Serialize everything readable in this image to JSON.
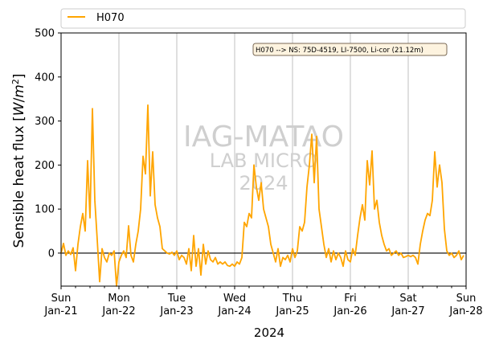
{
  "chart_data": {
    "type": "line",
    "xlabel": "2024",
    "ylabel": "Sensible heat flux [W/m²]",
    "ylabel_parts": {
      "main": "Sensible heat flux [",
      "var": "W",
      "slash": "/",
      "base": "m",
      "exp": "2",
      "close": "]"
    },
    "ylim": [
      -75,
      500
    ],
    "yticks": [
      0,
      100,
      200,
      300,
      400,
      500
    ],
    "xlim": [
      "2024-01-21",
      "2024-01-28"
    ],
    "xticks": [
      {
        "date": "2024-01-21",
        "day": "Sun",
        "label": "Jan-21"
      },
      {
        "date": "2024-01-22",
        "day": "Mon",
        "label": "Jan-22"
      },
      {
        "date": "2024-01-23",
        "day": "Tue",
        "label": "Jan-23"
      },
      {
        "date": "2024-01-24",
        "day": "Wed",
        "label": "Jan-24"
      },
      {
        "date": "2024-01-25",
        "day": "Thu",
        "label": "Jan-25"
      },
      {
        "date": "2024-01-26",
        "day": "Fri",
        "label": "Jan-26"
      },
      {
        "date": "2024-01-27",
        "day": "Sat",
        "label": "Jan-27"
      },
      {
        "date": "2024-01-28",
        "day": "Sun",
        "label": "Jan-28"
      }
    ],
    "grid": "vertical",
    "zero_line": true,
    "legend_position": "top",
    "annotation": "H070 --> NS: 75D-4519, LI-7500, Li-cor (21.12m)",
    "watermark": {
      "line1": "IAG-MATAO",
      "line2": "LAB MICRO",
      "line3": "2024"
    },
    "series": [
      {
        "name": "H070",
        "color": "#ffa500",
        "points": [
          [
            "2024-01-21 00:00",
            0
          ],
          [
            "2024-01-21 01:00",
            22
          ],
          [
            "2024-01-21 02:00",
            -5
          ],
          [
            "2024-01-21 03:00",
            5
          ],
          [
            "2024-01-21 04:00",
            -3
          ],
          [
            "2024-01-21 05:00",
            12
          ],
          [
            "2024-01-21 06:00",
            -40
          ],
          [
            "2024-01-21 07:00",
            20
          ],
          [
            "2024-01-21 08:00",
            60
          ],
          [
            "2024-01-21 09:00",
            90
          ],
          [
            "2024-01-21 10:00",
            50
          ],
          [
            "2024-01-21 11:00",
            210
          ],
          [
            "2024-01-21 12:00",
            80
          ],
          [
            "2024-01-21 13:00",
            328
          ],
          [
            "2024-01-21 14:00",
            120
          ],
          [
            "2024-01-21 15:00",
            30
          ],
          [
            "2024-01-21 16:00",
            -65
          ],
          [
            "2024-01-21 17:00",
            10
          ],
          [
            "2024-01-21 18:00",
            -10
          ],
          [
            "2024-01-21 19:00",
            -20
          ],
          [
            "2024-01-21 20:00",
            0
          ],
          [
            "2024-01-21 21:00",
            -5
          ],
          [
            "2024-01-21 22:00",
            5
          ],
          [
            "2024-01-21 23:00",
            -75
          ],
          [
            "2024-01-22 00:00",
            -20
          ],
          [
            "2024-01-22 01:00",
            -5
          ],
          [
            "2024-01-22 02:00",
            5
          ],
          [
            "2024-01-22 03:00",
            -10
          ],
          [
            "2024-01-22 04:00",
            62
          ],
          [
            "2024-01-22 05:00",
            -5
          ],
          [
            "2024-01-22 06:00",
            -20
          ],
          [
            "2024-01-22 07:00",
            20
          ],
          [
            "2024-01-22 08:00",
            50
          ],
          [
            "2024-01-22 09:00",
            100
          ],
          [
            "2024-01-22 10:00",
            220
          ],
          [
            "2024-01-22 11:00",
            180
          ],
          [
            "2024-01-22 12:00",
            336
          ],
          [
            "2024-01-22 13:00",
            130
          ],
          [
            "2024-01-22 14:00",
            230
          ],
          [
            "2024-01-22 15:00",
            110
          ],
          [
            "2024-01-22 16:00",
            80
          ],
          [
            "2024-01-22 17:00",
            60
          ],
          [
            "2024-01-22 18:00",
            10
          ],
          [
            "2024-01-22 19:00",
            5
          ],
          [
            "2024-01-22 20:00",
            0
          ],
          [
            "2024-01-22 21:00",
            -2
          ],
          [
            "2024-01-22 22:00",
            2
          ],
          [
            "2024-01-22 23:00",
            -5
          ],
          [
            "2024-01-23 00:00",
            5
          ],
          [
            "2024-01-23 01:00",
            -15
          ],
          [
            "2024-01-23 02:00",
            -5
          ],
          [
            "2024-01-23 03:00",
            -10
          ],
          [
            "2024-01-23 04:00",
            -25
          ],
          [
            "2024-01-23 05:00",
            10
          ],
          [
            "2024-01-23 06:00",
            -40
          ],
          [
            "2024-01-23 07:00",
            40
          ],
          [
            "2024-01-23 08:00",
            -30
          ],
          [
            "2024-01-23 09:00",
            10
          ],
          [
            "2024-01-23 10:00",
            -50
          ],
          [
            "2024-01-23 11:00",
            20
          ],
          [
            "2024-01-23 12:00",
            -25
          ],
          [
            "2024-01-23 13:00",
            5
          ],
          [
            "2024-01-23 14:00",
            -15
          ],
          [
            "2024-01-23 15:00",
            -20
          ],
          [
            "2024-01-23 16:00",
            -10
          ],
          [
            "2024-01-23 17:00",
            -25
          ],
          [
            "2024-01-23 18:00",
            -20
          ],
          [
            "2024-01-23 19:00",
            -25
          ],
          [
            "2024-01-23 20:00",
            -20
          ],
          [
            "2024-01-23 21:00",
            -28
          ],
          [
            "2024-01-23 22:00",
            -30
          ],
          [
            "2024-01-23 23:00",
            -25
          ],
          [
            "2024-01-24 00:00",
            -30
          ],
          [
            "2024-01-24 01:00",
            -20
          ],
          [
            "2024-01-24 02:00",
            -25
          ],
          [
            "2024-01-24 03:00",
            -10
          ],
          [
            "2024-01-24 04:00",
            70
          ],
          [
            "2024-01-24 05:00",
            60
          ],
          [
            "2024-01-24 06:00",
            90
          ],
          [
            "2024-01-24 07:00",
            80
          ],
          [
            "2024-01-24 08:00",
            200
          ],
          [
            "2024-01-24 09:00",
            150
          ],
          [
            "2024-01-24 10:00",
            120
          ],
          [
            "2024-01-24 11:00",
            160
          ],
          [
            "2024-01-24 12:00",
            100
          ],
          [
            "2024-01-24 13:00",
            80
          ],
          [
            "2024-01-24 14:00",
            60
          ],
          [
            "2024-01-24 15:00",
            20
          ],
          [
            "2024-01-24 16:00",
            0
          ],
          [
            "2024-01-24 17:00",
            -20
          ],
          [
            "2024-01-24 18:00",
            10
          ],
          [
            "2024-01-24 19:00",
            -30
          ],
          [
            "2024-01-24 20:00",
            -10
          ],
          [
            "2024-01-24 21:00",
            -15
          ],
          [
            "2024-01-24 22:00",
            -5
          ],
          [
            "2024-01-24 23:00",
            -20
          ],
          [
            "2024-01-25 00:00",
            10
          ],
          [
            "2024-01-25 01:00",
            -10
          ],
          [
            "2024-01-25 02:00",
            5
          ],
          [
            "2024-01-25 03:00",
            60
          ],
          [
            "2024-01-25 04:00",
            50
          ],
          [
            "2024-01-25 05:00",
            70
          ],
          [
            "2024-01-25 06:00",
            150
          ],
          [
            "2024-01-25 07:00",
            200
          ],
          [
            "2024-01-25 08:00",
            270
          ],
          [
            "2024-01-25 09:00",
            160
          ],
          [
            "2024-01-25 10:00",
            265
          ],
          [
            "2024-01-25 11:00",
            100
          ],
          [
            "2024-01-25 12:00",
            60
          ],
          [
            "2024-01-25 13:00",
            20
          ],
          [
            "2024-01-25 14:00",
            -10
          ],
          [
            "2024-01-25 15:00",
            10
          ],
          [
            "2024-01-25 16:00",
            -20
          ],
          [
            "2024-01-25 17:00",
            5
          ],
          [
            "2024-01-25 18:00",
            -15
          ],
          [
            "2024-01-25 19:00",
            0
          ],
          [
            "2024-01-25 20:00",
            -10
          ],
          [
            "2024-01-25 21:00",
            -30
          ],
          [
            "2024-01-25 22:00",
            5
          ],
          [
            "2024-01-25 23:00",
            -15
          ],
          [
            "2024-01-26 00:00",
            -20
          ],
          [
            "2024-01-26 01:00",
            10
          ],
          [
            "2024-01-26 02:00",
            -5
          ],
          [
            "2024-01-26 03:00",
            40
          ],
          [
            "2024-01-26 04:00",
            80
          ],
          [
            "2024-01-26 05:00",
            110
          ],
          [
            "2024-01-26 06:00",
            75
          ],
          [
            "2024-01-26 07:00",
            210
          ],
          [
            "2024-01-26 08:00",
            155
          ],
          [
            "2024-01-26 09:00",
            232
          ],
          [
            "2024-01-26 10:00",
            100
          ],
          [
            "2024-01-26 11:00",
            120
          ],
          [
            "2024-01-26 12:00",
            70
          ],
          [
            "2024-01-26 13:00",
            40
          ],
          [
            "2024-01-26 14:00",
            20
          ],
          [
            "2024-01-26 15:00",
            5
          ],
          [
            "2024-01-26 16:00",
            10
          ],
          [
            "2024-01-26 17:00",
            -5
          ],
          [
            "2024-01-26 18:00",
            0
          ],
          [
            "2024-01-26 19:00",
            5
          ],
          [
            "2024-01-26 20:00",
            -5
          ],
          [
            "2024-01-26 21:00",
            0
          ],
          [
            "2024-01-26 22:00",
            -10
          ],
          [
            "2024-01-26 23:00",
            -8
          ],
          [
            "2024-01-27 00:00",
            -5
          ],
          [
            "2024-01-27 01:00",
            -8
          ],
          [
            "2024-01-27 02:00",
            -5
          ],
          [
            "2024-01-27 03:00",
            -10
          ],
          [
            "2024-01-27 04:00",
            -25
          ],
          [
            "2024-01-27 05:00",
            20
          ],
          [
            "2024-01-27 06:00",
            50
          ],
          [
            "2024-01-27 07:00",
            75
          ],
          [
            "2024-01-27 08:00",
            90
          ],
          [
            "2024-01-27 09:00",
            85
          ],
          [
            "2024-01-27 10:00",
            120
          ],
          [
            "2024-01-27 11:00",
            230
          ],
          [
            "2024-01-27 12:00",
            150
          ],
          [
            "2024-01-27 13:00",
            200
          ],
          [
            "2024-01-27 14:00",
            160
          ],
          [
            "2024-01-27 15:00",
            55
          ],
          [
            "2024-01-27 16:00",
            5
          ],
          [
            "2024-01-27 17:00",
            -5
          ],
          [
            "2024-01-27 18:00",
            0
          ],
          [
            "2024-01-27 19:00",
            -10
          ],
          [
            "2024-01-27 20:00",
            -5
          ],
          [
            "2024-01-27 21:00",
            5
          ],
          [
            "2024-01-27 22:00",
            -15
          ],
          [
            "2024-01-27 23:00",
            -5
          ]
        ]
      }
    ]
  }
}
